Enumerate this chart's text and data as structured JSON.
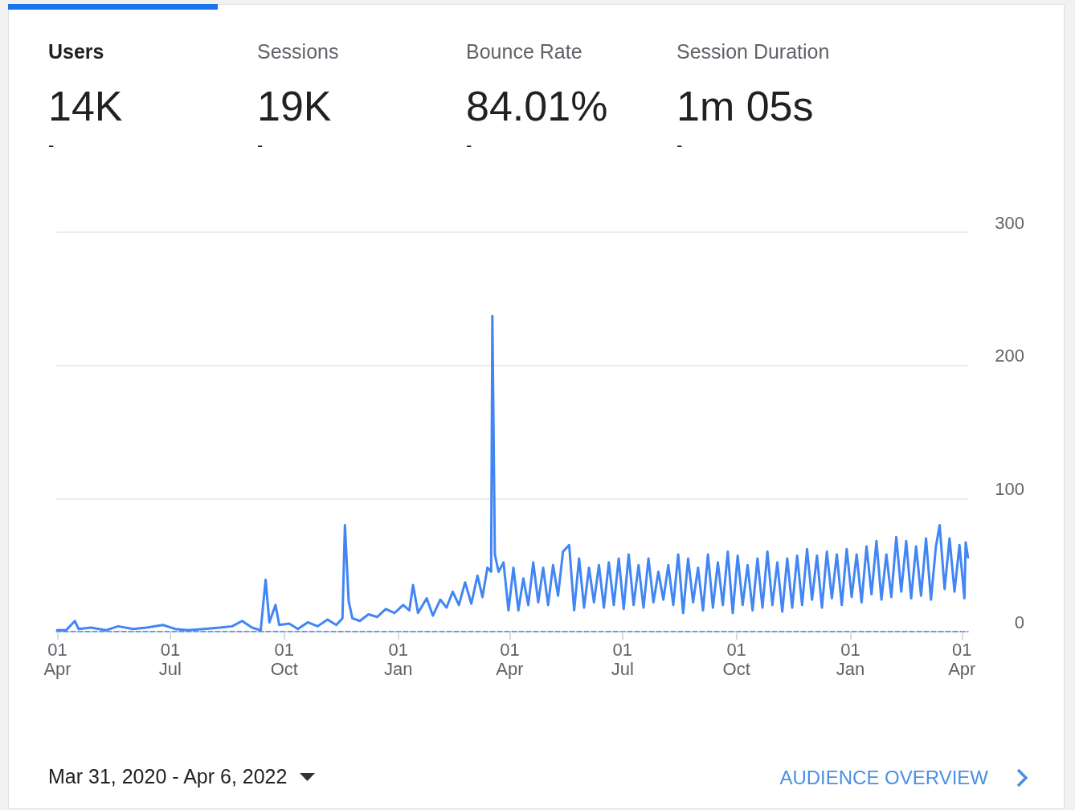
{
  "chart_data": {
    "type": "line",
    "annotations": [
      "Users",
      "14K",
      "-",
      "Sessions",
      "19K",
      "-",
      "Bounce Rate",
      "84.01%",
      "-",
      "Session Duration",
      "1m 05s",
      "-",
      "Mar 31, 2020 - Apr 6, 2022",
      "AUDIENCE OVERVIEW"
    ],
    "x": [
      "2020-03-31",
      "2020-04-08",
      "2020-04-15",
      "2020-04-18",
      "2020-04-28",
      "2020-05-10",
      "2020-05-20",
      "2020-06-01",
      "2020-06-12",
      "2020-06-25",
      "2020-07-05",
      "2020-07-15",
      "2020-07-28",
      "2020-08-10",
      "2020-08-20",
      "2020-08-28",
      "2020-09-05",
      "2020-09-12",
      "2020-09-16",
      "2020-09-19",
      "2020-09-24",
      "2020-09-27",
      "2020-10-05",
      "2020-10-12",
      "2020-10-20",
      "2020-10-28",
      "2020-11-05",
      "2020-11-12",
      "2020-11-17",
      "2020-11-19",
      "2020-11-22",
      "2020-11-25",
      "2020-12-01",
      "2020-12-08",
      "2020-12-15",
      "2020-12-22",
      "2020-12-29",
      "2021-01-05",
      "2021-01-10",
      "2021-01-13",
      "2021-01-17",
      "2021-01-24",
      "2021-01-29",
      "2021-02-04",
      "2021-02-09",
      "2021-02-14",
      "2021-02-19",
      "2021-02-24",
      "2021-03-01",
      "2021-03-06",
      "2021-03-10",
      "2021-03-14",
      "2021-03-17",
      "2021-03-18",
      "2021-03-20",
      "2021-03-23",
      "2021-03-27",
      "2021-03-31",
      "2021-04-04",
      "2021-04-08",
      "2021-04-12",
      "2021-04-16",
      "2021-04-20",
      "2021-04-24",
      "2021-04-28",
      "2021-05-02",
      "2021-05-06",
      "2021-05-10",
      "2021-05-14",
      "2021-05-19",
      "2021-05-23",
      "2021-05-27",
      "2021-05-31",
      "2021-06-04",
      "2021-06-08",
      "2021-06-12",
      "2021-06-16",
      "2021-06-20",
      "2021-06-24",
      "2021-06-28",
      "2021-07-02",
      "2021-07-06",
      "2021-07-10",
      "2021-07-14",
      "2021-07-18",
      "2021-07-22",
      "2021-07-26",
      "2021-07-30",
      "2021-08-03",
      "2021-08-07",
      "2021-08-11",
      "2021-08-15",
      "2021-08-19",
      "2021-08-23",
      "2021-08-27",
      "2021-08-31",
      "2021-09-04",
      "2021-09-08",
      "2021-09-12",
      "2021-09-16",
      "2021-09-20",
      "2021-09-24",
      "2021-09-28",
      "2021-10-02",
      "2021-10-06",
      "2021-10-10",
      "2021-10-14",
      "2021-10-18",
      "2021-10-22",
      "2021-10-26",
      "2021-10-30",
      "2021-11-03",
      "2021-11-07",
      "2021-11-11",
      "2021-11-15",
      "2021-11-19",
      "2021-11-23",
      "2021-11-27",
      "2021-12-01",
      "2021-12-05",
      "2021-12-09",
      "2021-12-13",
      "2021-12-17",
      "2021-12-21",
      "2021-12-25",
      "2021-12-29",
      "2022-01-02",
      "2022-01-06",
      "2022-01-10",
      "2022-01-14",
      "2022-01-18",
      "2022-01-22",
      "2022-01-26",
      "2022-01-30",
      "2022-02-03",
      "2022-02-07",
      "2022-02-11",
      "2022-02-15",
      "2022-02-19",
      "2022-02-23",
      "2022-02-27",
      "2022-03-03",
      "2022-03-07",
      "2022-03-11",
      "2022-03-14",
      "2022-03-18",
      "2022-03-22",
      "2022-03-26",
      "2022-03-30",
      "2022-04-03",
      "2022-04-04",
      "2022-04-06"
    ],
    "series": [
      {
        "color": "#4285f4",
        "values": [
          1,
          1,
          8,
          2,
          3,
          1,
          4,
          2,
          3,
          5,
          2,
          1,
          2,
          3,
          4,
          8,
          3,
          1,
          39,
          7,
          20,
          5,
          6,
          2,
          7,
          4,
          9,
          5,
          10,
          80,
          23,
          10,
          8,
          13,
          11,
          17,
          14,
          20,
          16,
          35,
          14,
          25,
          12,
          24,
          18,
          30,
          20,
          37,
          21,
          42,
          26,
          48,
          45,
          237,
          58,
          45,
          52,
          16,
          48,
          16,
          40,
          20,
          52,
          22,
          48,
          20,
          50,
          27,
          60,
          65,
          16,
          55,
          18,
          48,
          22,
          50,
          18,
          52,
          20,
          55,
          17,
          58,
          20,
          50,
          18,
          55,
          22,
          45,
          24,
          50,
          20,
          58,
          14,
          55,
          22,
          48,
          16,
          58,
          18,
          52,
          20,
          60,
          14,
          57,
          20,
          50,
          16,
          55,
          18,
          60,
          20,
          52,
          15,
          55,
          18,
          57,
          20,
          62,
          24,
          57,
          18,
          60,
          25,
          58,
          20,
          62,
          26,
          58,
          22,
          64,
          28,
          68,
          24,
          58,
          26,
          71,
          30,
          68,
          25,
          64,
          27,
          70,
          24,
          64,
          80,
          32,
          70,
          30,
          65,
          25,
          67,
          55
        ]
      }
    ],
    "xlim": [
      "2020-03-31",
      "2022-04-06"
    ],
    "xticks": [
      {
        "value": "2020-04-01",
        "label": "01\nApr"
      },
      {
        "value": "2020-07-01",
        "label": "01\nJul"
      },
      {
        "value": "2020-10-01",
        "label": "01\nOct"
      },
      {
        "value": "2021-01-01",
        "label": "01\nJan"
      },
      {
        "value": "2021-04-01",
        "label": "01\nApr"
      },
      {
        "value": "2021-07-01",
        "label": "01\nJul"
      },
      {
        "value": "2021-10-01",
        "label": "01\nOct"
      },
      {
        "value": "2022-01-01",
        "label": "01\nJan"
      },
      {
        "value": "2022-04-01",
        "label": "01\nApr"
      }
    ],
    "ylim": [
      0,
      300
    ],
    "yticks": [
      0,
      100,
      200,
      300
    ],
    "grid": "y",
    "marker": "none",
    "line_style": "solid"
  }
}
